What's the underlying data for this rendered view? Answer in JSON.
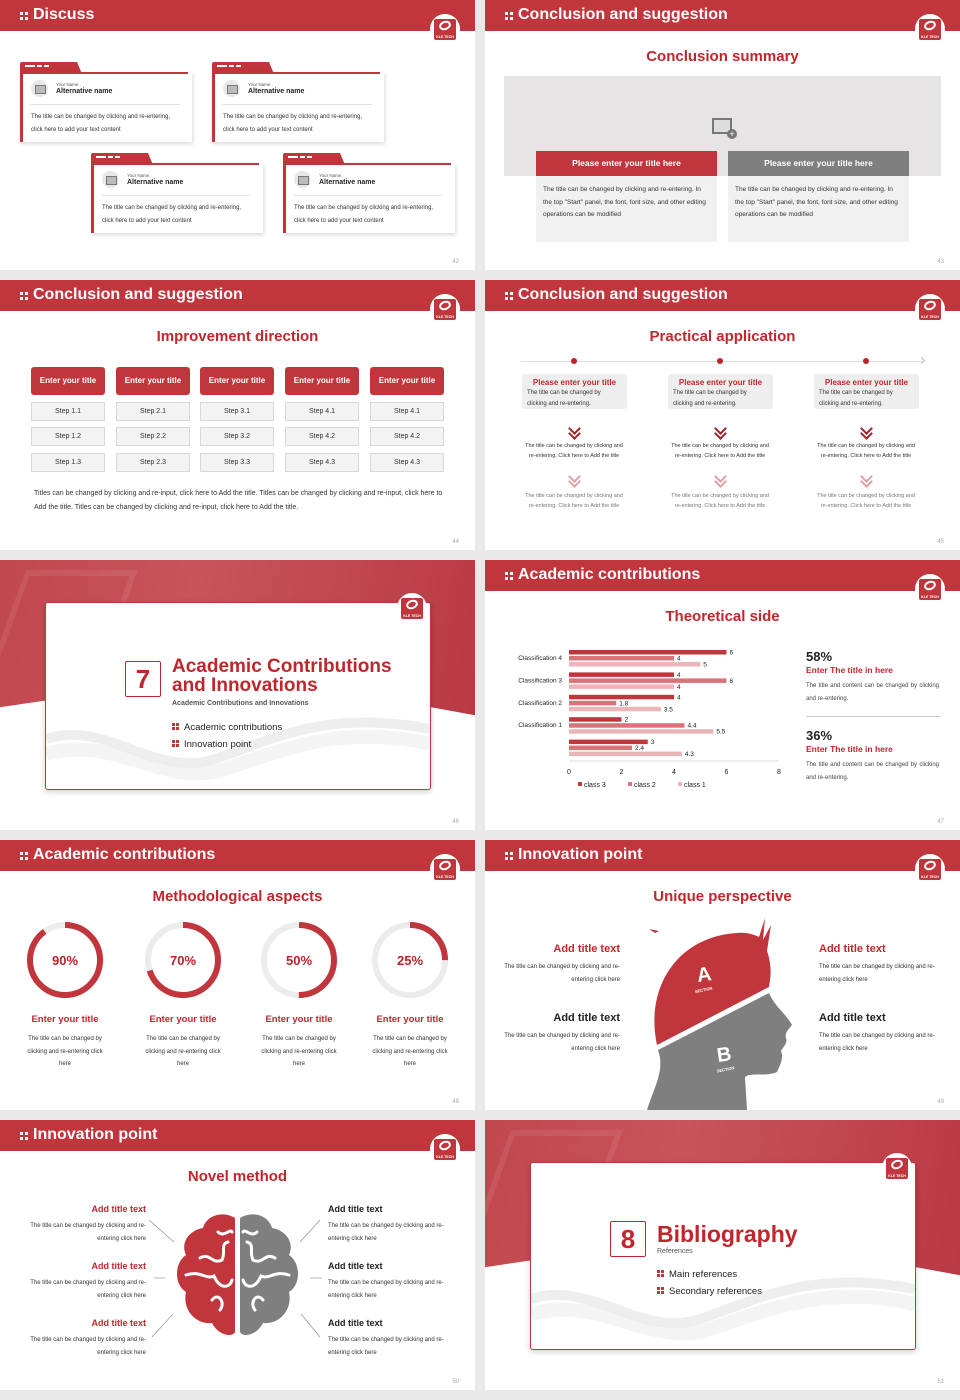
{
  "logo_text": "KLE TECH",
  "colors": {
    "accent": "#c1363c",
    "title_red": "#c0272d",
    "gray": "#7f7f7f",
    "class3": "#c1363c",
    "class2": "#d9737a",
    "class1": "#e9b5b9"
  },
  "s42": {
    "header": "Discuss",
    "page": "42",
    "cards": [
      {
        "small": "Your Name",
        "name": "Alternative name",
        "text": "The title can be changed by clicking and re-entering, click here to add your text content"
      },
      {
        "small": "Your Name",
        "name": "Alternative name",
        "text": "The title can be changed by clicking and re-entering, click here to add your text content"
      },
      {
        "small": "Your Name",
        "name": "Alternative name",
        "text": "The title can be changed by clicking and re-entering, click here to add your text content"
      },
      {
        "small": "Your Name",
        "name": "Alternative name",
        "text": "The title can be changed by clicking and re-entering, click here to add your text content"
      }
    ]
  },
  "s43": {
    "header": "Conclusion and suggestion",
    "title": "Conclusion summary",
    "page": "43",
    "boxes": [
      {
        "title": "Please enter your title here",
        "text": "The title can be changed by clicking and re-entering. In the top \"Start\" panel, the font, font size, and other editing operations can be modified"
      },
      {
        "title": "Please enter your title here",
        "text": "The title can be changed by clicking and re-entering. In the top \"Start\" panel, the font, font size, and other editing operations can be modified"
      }
    ]
  },
  "s44": {
    "header": "Conclusion and suggestion",
    "title": "Improvement direction",
    "page": "44",
    "columns": [
      {
        "title": "Enter your title",
        "steps": [
          "Step 1.1",
          "Step 1.2",
          "Step 1.3"
        ]
      },
      {
        "title": "Enter your title",
        "steps": [
          "Step 2.1",
          "Step 2.2",
          "Step 2.3"
        ]
      },
      {
        "title": "Enter your title",
        "steps": [
          "Step 3.1",
          "Step 3.2",
          "Step 3.3"
        ]
      },
      {
        "title": "Enter your title",
        "steps": [
          "Step 4.1",
          "Step 4.2",
          "Step 4.3"
        ]
      },
      {
        "title": "Enter your title",
        "steps": [
          "Step 4.1",
          "Step 4.2",
          "Step 4.3"
        ]
      }
    ],
    "paragraph": "Titles can be changed by clicking and re-input, click here to Add the title. Titles can be changed by clicking and re-input, click here to Add the title. Titles can be changed by clicking and re-input, click here to Add the title."
  },
  "s45": {
    "header": "Conclusion and suggestion",
    "title": "Practical application",
    "page": "45",
    "items": [
      {
        "title": "Please enter your title",
        "text": "The title can be changed by clicking and re-entering.",
        "detail1": "The title can be changed by clicking and re-entering. Click here to Add the title",
        "detail2": "The title can be changed by clicking and re-entering. Click here to Add the title"
      },
      {
        "title": "Please enter your title",
        "text": "The title can be changed by clicking and re-entering.",
        "detail1": "The title can be changed by clicking and re-entering. Click here to Add the title",
        "detail2": "The title can be changed by clicking and re-entering. Click here to Add the title"
      },
      {
        "title": "Please enter your title",
        "text": "The title can be changed by clicking and re-entering.",
        "detail1": "The title can be changed by clicking and re-entering. Click here to Add the title",
        "detail2": "The title can be changed by clicking and re-entering. Click here to Add the title"
      }
    ]
  },
  "s46": {
    "number": "7",
    "title_line1": "Academic Contributions",
    "title_line2": "and Innovations",
    "subtitle": "Academic Contributions and Innovations",
    "bullets": [
      "Academic contributions",
      "Innovation point"
    ],
    "page": "46"
  },
  "s47": {
    "header": "Academic contributions",
    "title": "Theoretical side",
    "page": "47",
    "stats": [
      {
        "value": "58%",
        "title": "Enter The title in here",
        "text": "The title and content can be changed by clicking and re-entering."
      },
      {
        "value": "36%",
        "title": "Enter The title in here",
        "text": "The title and content can be changed by clicking and re-entering."
      }
    ]
  },
  "chart_data": {
    "type": "bar",
    "orientation": "horizontal",
    "categories": [
      "Classification 4",
      "Classification 3",
      "Classification 2",
      "Classification 1",
      ""
    ],
    "series": [
      {
        "name": "class 3",
        "values": [
          6,
          4,
          4,
          2,
          3
        ]
      },
      {
        "name": "class 2",
        "values": [
          4,
          6,
          1.8,
          4.4,
          2.4
        ]
      },
      {
        "name": "class 1",
        "values": [
          5,
          4,
          3.5,
          5.5,
          4.3
        ]
      }
    ],
    "xlim": [
      0,
      8
    ],
    "xticks": [
      "0",
      "2",
      "4",
      "6",
      "8"
    ],
    "grid": false,
    "legend": "bottom",
    "data_labels": true
  },
  "s48": {
    "header": "Academic contributions",
    "title": "Methodological aspects",
    "page": "48",
    "donuts": [
      {
        "value": 90,
        "label": "90%",
        "title": "Enter your title",
        "text": "The title can be changed by clicking and re-entering click here"
      },
      {
        "value": 70,
        "label": "70%",
        "title": "Enter your title",
        "text": "The title can be changed by clicking and re-entering click here"
      },
      {
        "value": 50,
        "label": "50%",
        "title": "Enter your title",
        "text": "The title can be changed by clicking and re-entering click here"
      },
      {
        "value": 25,
        "label": "25%",
        "title": "Enter your title",
        "text": "The title can be changed by clicking and re-entering click here"
      }
    ]
  },
  "s49": {
    "header": "Innovation point",
    "title": "Unique perspective",
    "page": "49",
    "section_a": "A",
    "section_b": "B",
    "section_word": "SECTION",
    "blocks": [
      {
        "title": "Add title text",
        "text": "The title can be changed by clicking and re-entering click here"
      },
      {
        "title": "Add title text",
        "text": "The title can be changed by clicking and re-entering click here"
      },
      {
        "title": "Add title text",
        "text": "The title can be changed by clicking and re-entering click here"
      },
      {
        "title": "Add title text",
        "text": "The title can be changed by clicking and re-entering click here"
      }
    ]
  },
  "s50": {
    "header": "Innovation point",
    "title": "Novel method",
    "page": "50",
    "blocks": [
      {
        "title": "Add title text",
        "text": "The title can be changed by clicking and re-entering click here"
      },
      {
        "title": "Add title text",
        "text": "The title can be changed by clicking and re-entering click here"
      },
      {
        "title": "Add title text",
        "text": "The title can be changed by clicking and re-entering click here"
      },
      {
        "title": "Add title text",
        "text": "The title can be changed by clicking and re-entering click here"
      },
      {
        "title": "Add title text",
        "text": "The title can be changed by clicking and re-entering click here"
      },
      {
        "title": "Add title text",
        "text": "The title can be changed by clicking and re-entering click here"
      }
    ]
  },
  "s51": {
    "number": "8",
    "title": "Bibliography",
    "subtitle": "References",
    "bullets": [
      "Main references",
      "Secondary references"
    ],
    "page": "51"
  }
}
